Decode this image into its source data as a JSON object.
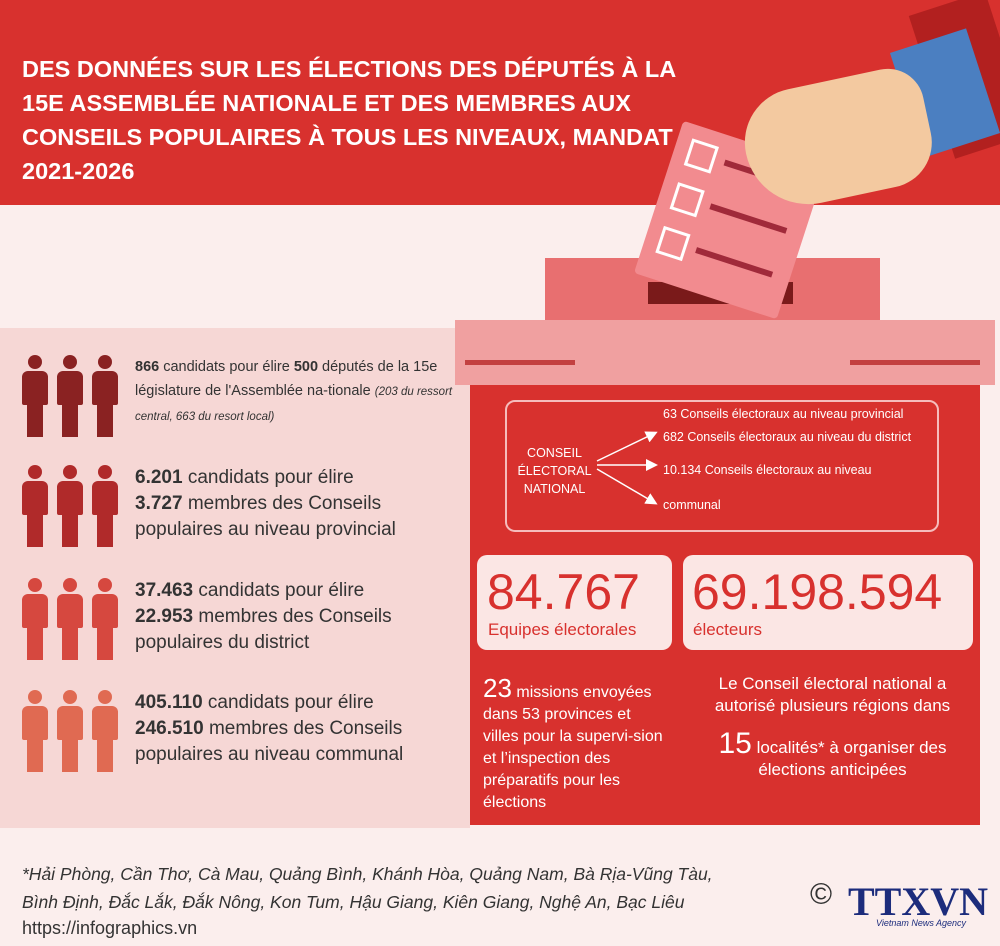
{
  "title": "DES DONNÉES SUR LES ÉLECTIONS  DES DÉPUTÉS À LA 15E ASSEMBLÉE NATIONALE ET DES MEMBRES AUX CONSEILS POPULAIRES À TOUS LES NIVEAUX, MANDAT 2021-2026",
  "colors": {
    "primary_red": "#d8312e",
    "light_pink": "#fbe6e4",
    "dark_red": "#8c1f1f"
  },
  "stats": [
    {
      "n1": "866",
      "t1": " candidats  pour élire ",
      "n2": "500",
      "t2": " députés de la 15e législature de l'Assemblée na-tionale ",
      "note": "(203 du ressort central, 663 du resort local)",
      "icon": "people-icon",
      "person_color": "#8a2222"
    },
    {
      "n1": "6.201",
      "t1": " candidats pour élire",
      "n2": "3.727",
      "t2": " membres des Conseils populaires au niveau provincial",
      "icon": "people-icon",
      "person_color": "#b02a2a"
    },
    {
      "n1": "37.463",
      "t1": " candidats pour élire",
      "n2": "22.953",
      "t2": " membres des Conseils populaires du district",
      "icon": "people-icon",
      "person_color": "#d6483f"
    },
    {
      "n1": "405.110",
      "t1": " candidats pour élire",
      "n2": "246.510",
      "t2": " membres des Conseils populaires au niveau communal",
      "icon": "people-icon",
      "person_color": "#e06a52"
    }
  ],
  "council": {
    "name": "CONSEIL ÉLECTORAL NATIONAL",
    "items": [
      "63 Conseils électoraux au niveau provincial",
      "682 Conseils électoraux au niveau du district",
      "10.134 Conseils électoraux au niveau",
      "communal"
    ]
  },
  "big_stats": [
    {
      "value": "84.767",
      "label": "Equipes électorales"
    },
    {
      "value": "69.198.594",
      "label": "électeurs"
    }
  ],
  "missions": {
    "number": "23",
    "text": " missions envoyées dans 53 provinces et villes pour la supervi-sion et l’inspection des préparatifs pour les élections"
  },
  "early": {
    "intro": "Le Conseil électoral national a autorisé plusieurs régions dans",
    "number": "15",
    "text": "  localités* à organiser des élections anticipées"
  },
  "footnote": "*Hải Phòng, Cần Thơ, Cà Mau, Quảng Bình, Khánh Hòa, Quảng Nam, Bà Rịa-Vũng Tàu, Bình Định, Đắc Lắk, Đắk Nông, Kon Tum, Hậu Giang, Kiên Giang, Nghệ An, Bạc Liêu",
  "url": "https://infographics.vn",
  "logo": {
    "copyright": "©",
    "name": "TTXVN",
    "tagline": "Vietnam News Agency"
  }
}
